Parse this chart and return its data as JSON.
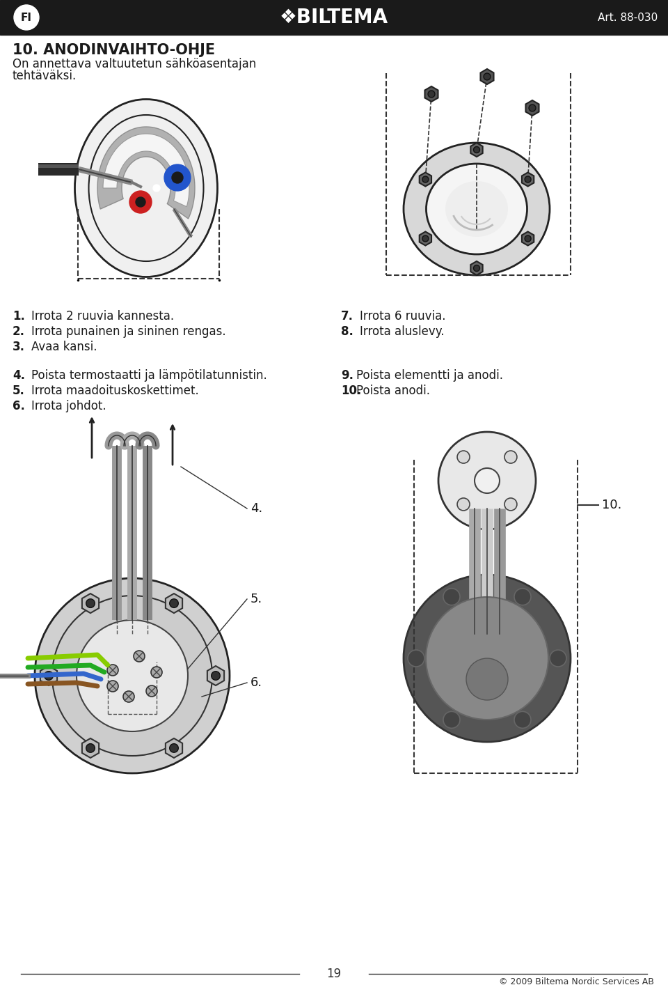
{
  "bg_color": "#ffffff",
  "header_bg": "#1a1a1a",
  "header_text_color": "#ffffff",
  "fi_text": "FI",
  "art_text": "Art. 88-030",
  "title": "10. ANODINVAIHTO-OHJE",
  "subtitle_line1": "On annettava valtuutetun sähköasentajan",
  "subtitle_line2": "tehtäväksi.",
  "instr1": [
    "1.",
    "Irrota 2 ruuvia kannesta."
  ],
  "instr2": [
    "2.",
    "Irrota punainen ja sininen rengas."
  ],
  "instr3": [
    "3.",
    "Avaa kansi."
  ],
  "instr7": [
    "7.",
    "Irrota 6 ruuvia."
  ],
  "instr8": [
    "8.",
    "Irrota aluslevy."
  ],
  "instr4": [
    "4.",
    "Poista termostaatti ja lämpötilatunnistin."
  ],
  "instr5": [
    "5.",
    "Irrota maadoituskoskettimet."
  ],
  "instr6": [
    "6.",
    "Irrota johdot."
  ],
  "instr9": [
    "9.",
    "Poista elementti ja anodi."
  ],
  "instr10": [
    "10.",
    "Poista anodi."
  ],
  "footer_page": "19",
  "footer_copy": "© 2009 Biltema Nordic Services AB",
  "label4": "4.",
  "label5": "5.",
  "label6": "6.",
  "label10": "10."
}
